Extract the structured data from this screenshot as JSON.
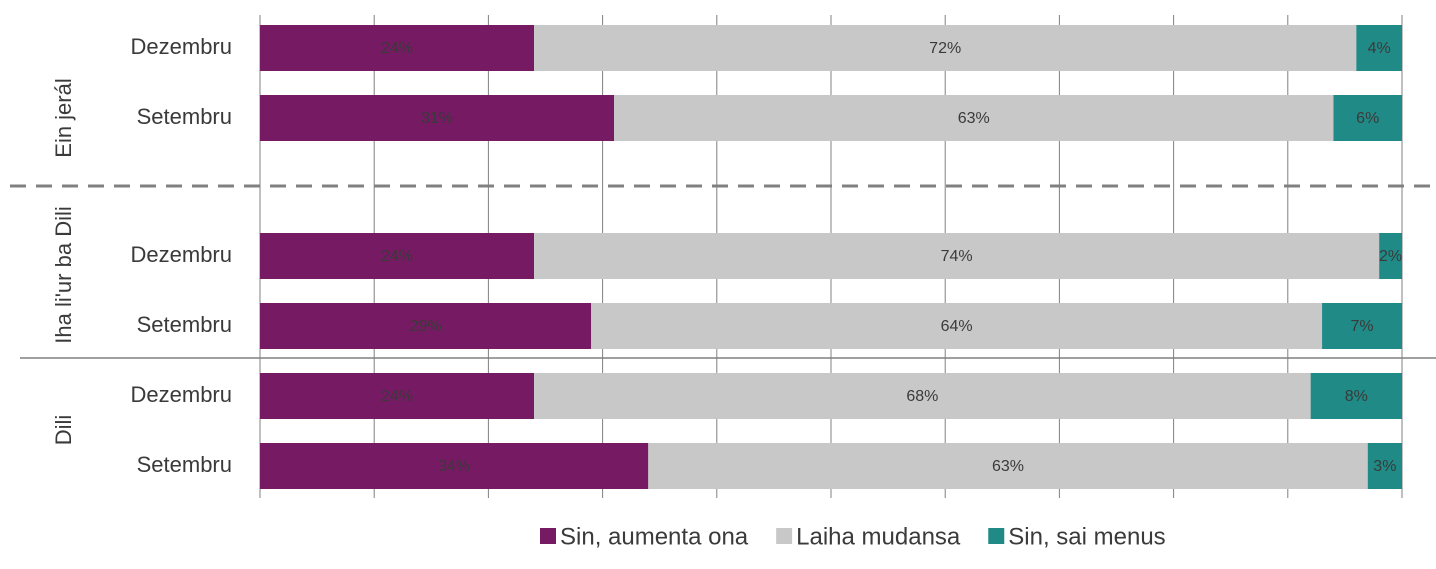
{
  "chart_data": {
    "type": "stacked-bar-horizontal",
    "groups": [
      {
        "name": "Ein jerál",
        "categories": [
          "Dezembru",
          "Setembru"
        ]
      },
      {
        "name": "Iha li'ur ba Dili",
        "categories": [
          "Dezembru",
          "Setembru"
        ]
      },
      {
        "name": "Dili",
        "categories": [
          "Dezembru",
          "Setembru"
        ]
      }
    ],
    "series": [
      {
        "name": "Sin, aumenta ona",
        "color": "#751a63",
        "label_color": "#ffffff",
        "values": [
          24,
          31,
          24,
          29,
          24,
          34
        ],
        "value_labels": [
          "24%",
          "31%",
          "24%",
          "29%",
          "24%",
          "34%"
        ]
      },
      {
        "name": "Laiha mudansa",
        "color": "#c8c8c8",
        "label_color": "#000000",
        "values": [
          72,
          63,
          74,
          64,
          68,
          63
        ],
        "value_labels": [
          "72%",
          "63%",
          "74%",
          "64%",
          "68%",
          "63%"
        ]
      },
      {
        "name": "Sin, sai menus",
        "color": "#208a87",
        "label_color": "#ffffff",
        "values": [
          4,
          6,
          2,
          7,
          8,
          3
        ],
        "value_labels": [
          "4%",
          "6%",
          "2%",
          "7%",
          "8%",
          "3%"
        ]
      }
    ],
    "xlim": [
      0,
      100
    ],
    "xticks": [
      0,
      10,
      20,
      30,
      40,
      50,
      60,
      70,
      80,
      90,
      100
    ],
    "grid": true,
    "legend": "bottom"
  }
}
